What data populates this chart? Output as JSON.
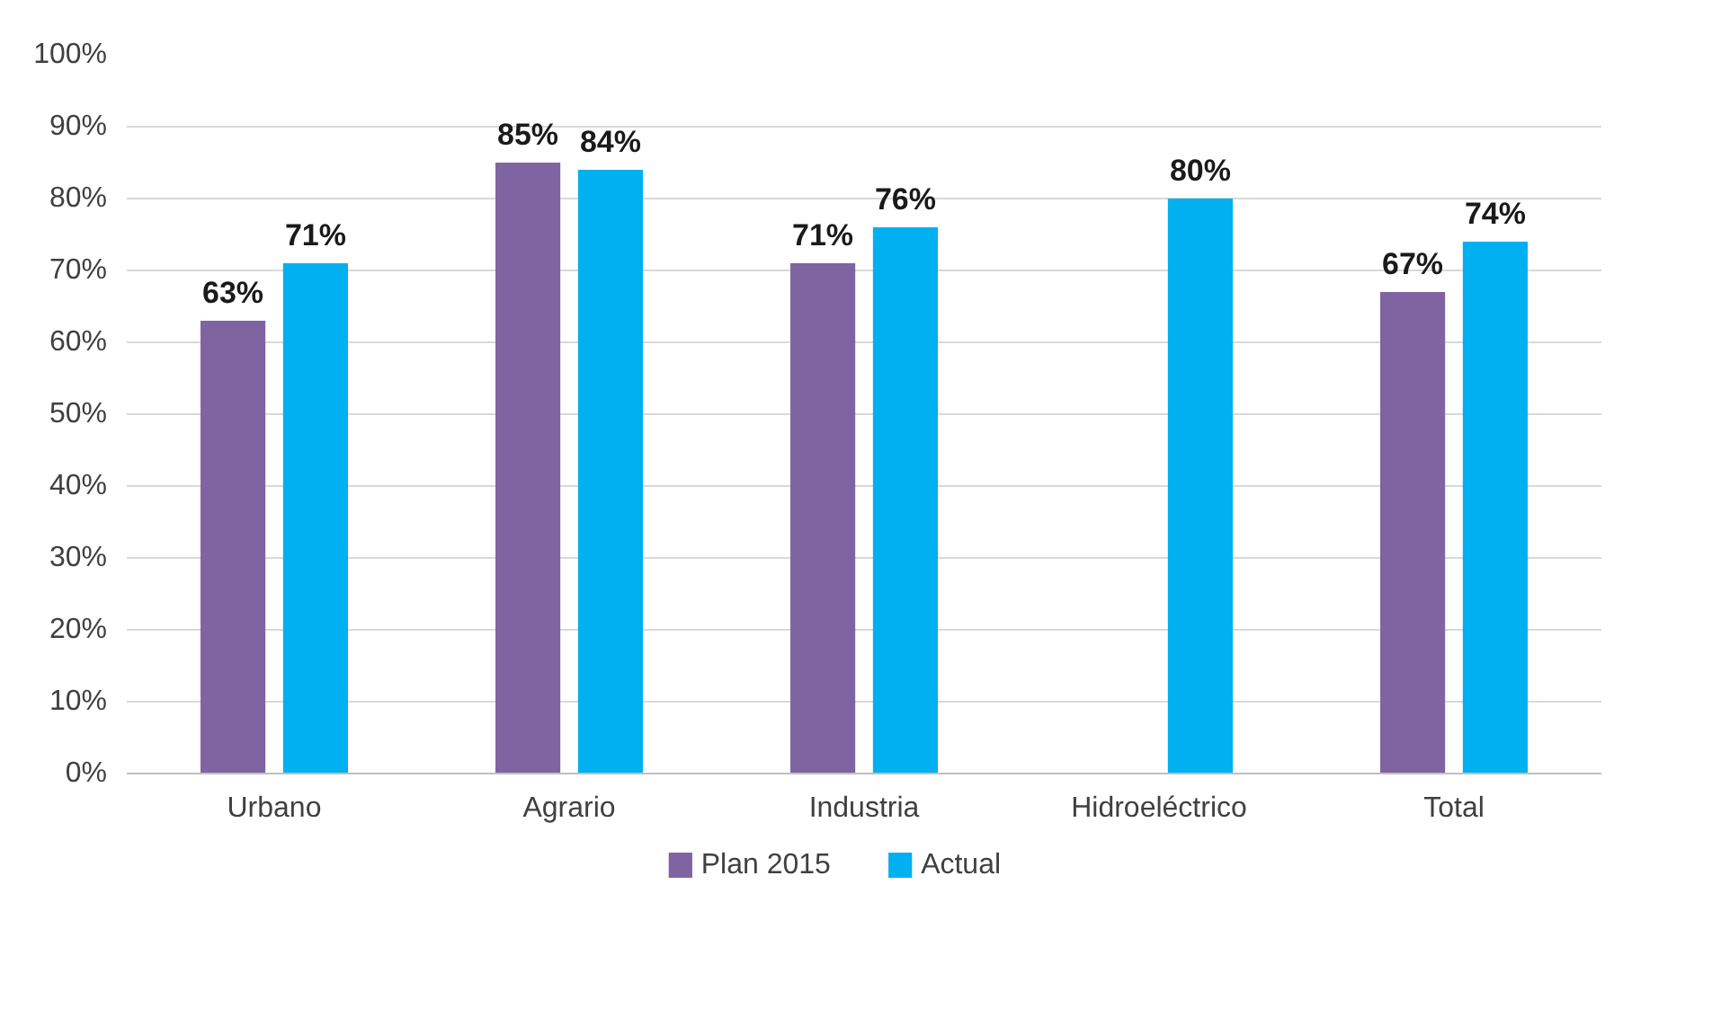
{
  "chart_data": {
    "type": "bar",
    "categories": [
      "Urbano",
      "Agrario",
      "Industria",
      "Hidroeléctrico",
      "Total"
    ],
    "series": [
      {
        "name": "Plan 2015",
        "color": "#8064a2",
        "values": [
          63,
          85,
          71,
          null,
          67
        ],
        "value_labels": [
          "63%",
          "85%",
          "71%",
          null,
          "67%"
        ]
      },
      {
        "name": "Actual",
        "color": "#00b0f0",
        "values": [
          71,
          84,
          76,
          80,
          74
        ],
        "value_labels": [
          "71%",
          "84%",
          "76%",
          "80%",
          "74%"
        ]
      }
    ],
    "ylim": [
      0,
      100
    ],
    "yticks": [
      {
        "value": 0,
        "label": "0%"
      },
      {
        "value": 10,
        "label": "10%"
      },
      {
        "value": 20,
        "label": "20%"
      },
      {
        "value": 30,
        "label": "30%"
      },
      {
        "value": 40,
        "label": "40%"
      },
      {
        "value": 50,
        "label": "50%"
      },
      {
        "value": 60,
        "label": "60%"
      },
      {
        "value": 70,
        "label": "70%"
      },
      {
        "value": 80,
        "label": "80%"
      },
      {
        "value": 90,
        "label": "90%"
      },
      {
        "value": 100,
        "label": "100%"
      }
    ],
    "grid": "y",
    "legend": "bottom"
  }
}
